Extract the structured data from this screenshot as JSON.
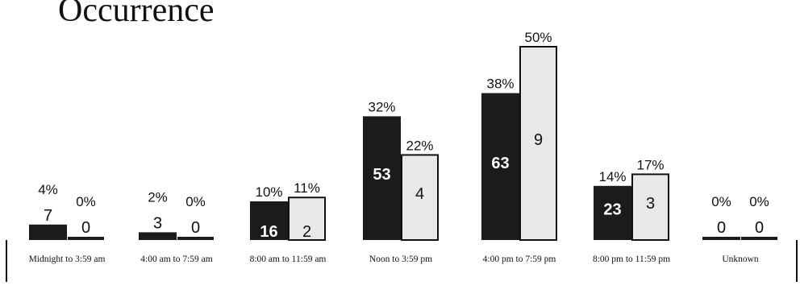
{
  "chart_data": {
    "type": "bar",
    "title": "Occurrence",
    "categories": [
      "Midnight to 3:59 am",
      "4:00 am to 7:59 am",
      "8:00 am to 11:59 am",
      "Noon to 3:59 pm",
      "4:00 pm to 7:59 pm",
      "8:00 pm to 11:59 pm",
      "Unknown"
    ],
    "series": [
      {
        "color": "#1c1a1a",
        "values": [
          4,
          2,
          10,
          32,
          38,
          14,
          0
        ],
        "value_labels": [
          "4%",
          "2%",
          "10%",
          "32%",
          "38%",
          "14%",
          "0%"
        ],
        "counts": [
          7,
          3,
          16,
          53,
          63,
          23,
          0
        ]
      },
      {
        "color": "#e8e8e8",
        "values": [
          0,
          0,
          11,
          22,
          50,
          17,
          0
        ],
        "value_labels": [
          "0%",
          "0%",
          "11%",
          "22%",
          "50%",
          "17%",
          "0%"
        ],
        "counts": [
          0,
          0,
          2,
          4,
          9,
          3,
          0
        ]
      }
    ]
  }
}
